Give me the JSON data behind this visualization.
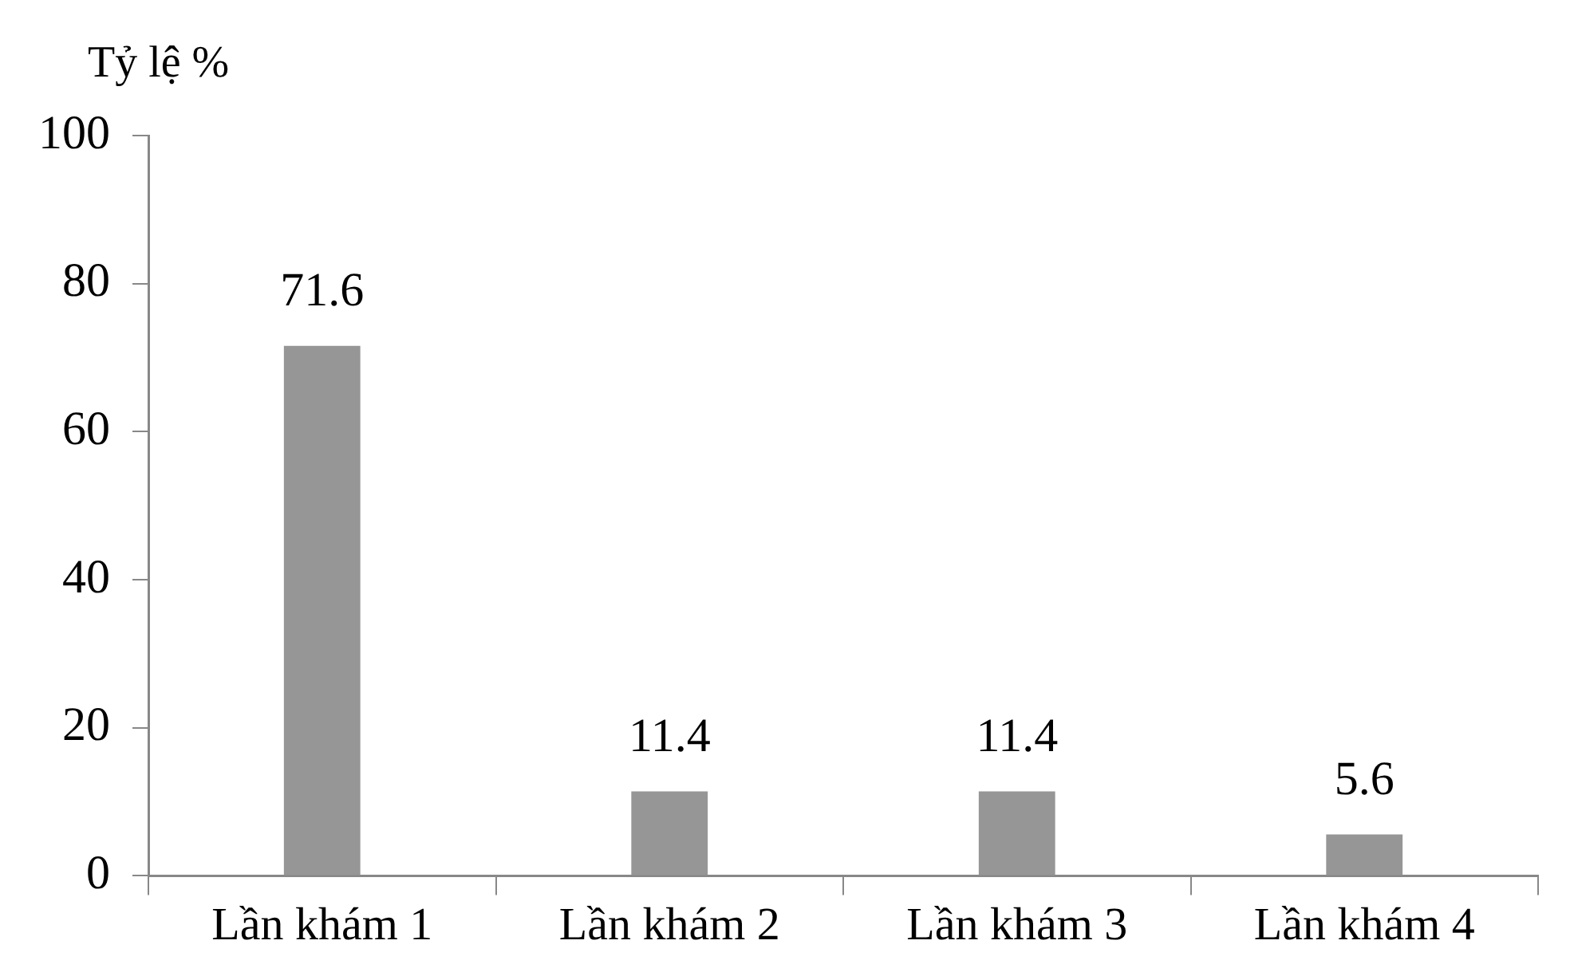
{
  "chart_data": {
    "type": "bar",
    "ylabel": "Tỷ lệ %",
    "categories": [
      "Lần khám 1",
      "Lần khám 2",
      "Lần khám 3",
      "Lần khám 4"
    ],
    "values": [
      71.6,
      11.4,
      11.4,
      5.6
    ],
    "color": "#969696",
    "ylim": [
      0,
      100
    ],
    "yticks": [
      0,
      20,
      40,
      60,
      80,
      100
    ],
    "grid": false,
    "legend": false,
    "data_labels": true
  }
}
